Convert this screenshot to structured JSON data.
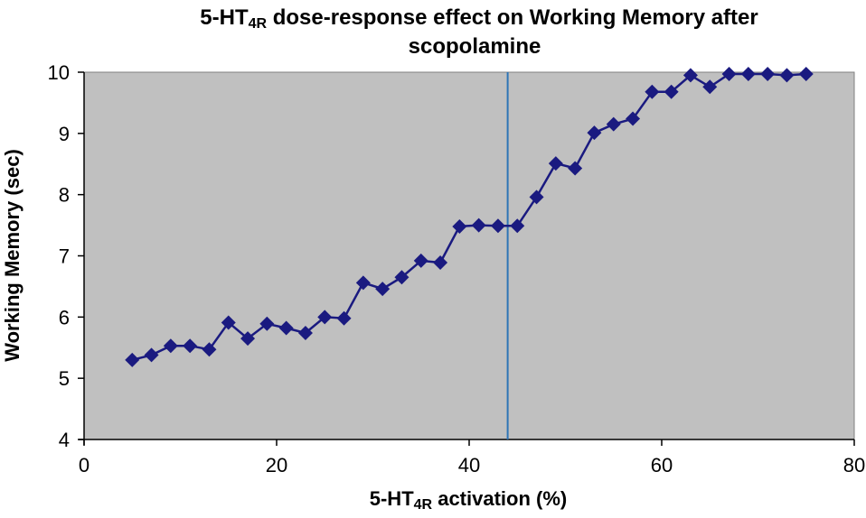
{
  "chart_data": {
    "type": "line",
    "title": {
      "line1_prefix": "5-HT",
      "line1_sub": "4R",
      "line1_suffix": " dose-response effect on Working Memory after",
      "line2": "scopolamine"
    },
    "xlabel": {
      "prefix": "5-HT",
      "sub": "4R",
      "suffix": " activation (%)"
    },
    "ylabel": "Working Memory  (sec)",
    "xlim": [
      0,
      80
    ],
    "ylim": [
      4,
      10
    ],
    "x_ticks": [
      "0",
      "20",
      "40",
      "60",
      "80"
    ],
    "y_ticks": [
      "4",
      "5",
      "6",
      "7",
      "8",
      "9",
      "10"
    ],
    "plot_background": "#c0c0c0",
    "series_color": "#1a1a80",
    "marker": "diamond",
    "vertical_line": {
      "x": 44,
      "color": "#2e75b6"
    },
    "series": [
      {
        "x": [
          5,
          7,
          9,
          11,
          13,
          15,
          17,
          19,
          21,
          23,
          25,
          27,
          29,
          31,
          33,
          35,
          37,
          39,
          41,
          43,
          45,
          47,
          49,
          51,
          53,
          55,
          57,
          59,
          61,
          63,
          65,
          67,
          69,
          71,
          73,
          75
        ],
        "y": [
          5.3,
          5.38,
          5.53,
          5.53,
          5.47,
          5.91,
          5.65,
          5.89,
          5.82,
          5.74,
          6.0,
          5.98,
          6.56,
          6.46,
          6.65,
          6.92,
          6.89,
          7.48,
          7.5,
          7.49,
          7.49,
          7.96,
          8.51,
          8.43,
          9.01,
          9.15,
          9.24,
          9.68,
          9.68,
          9.95,
          9.76,
          9.97,
          9.97,
          9.97,
          9.95,
          9.97
        ]
      }
    ]
  }
}
